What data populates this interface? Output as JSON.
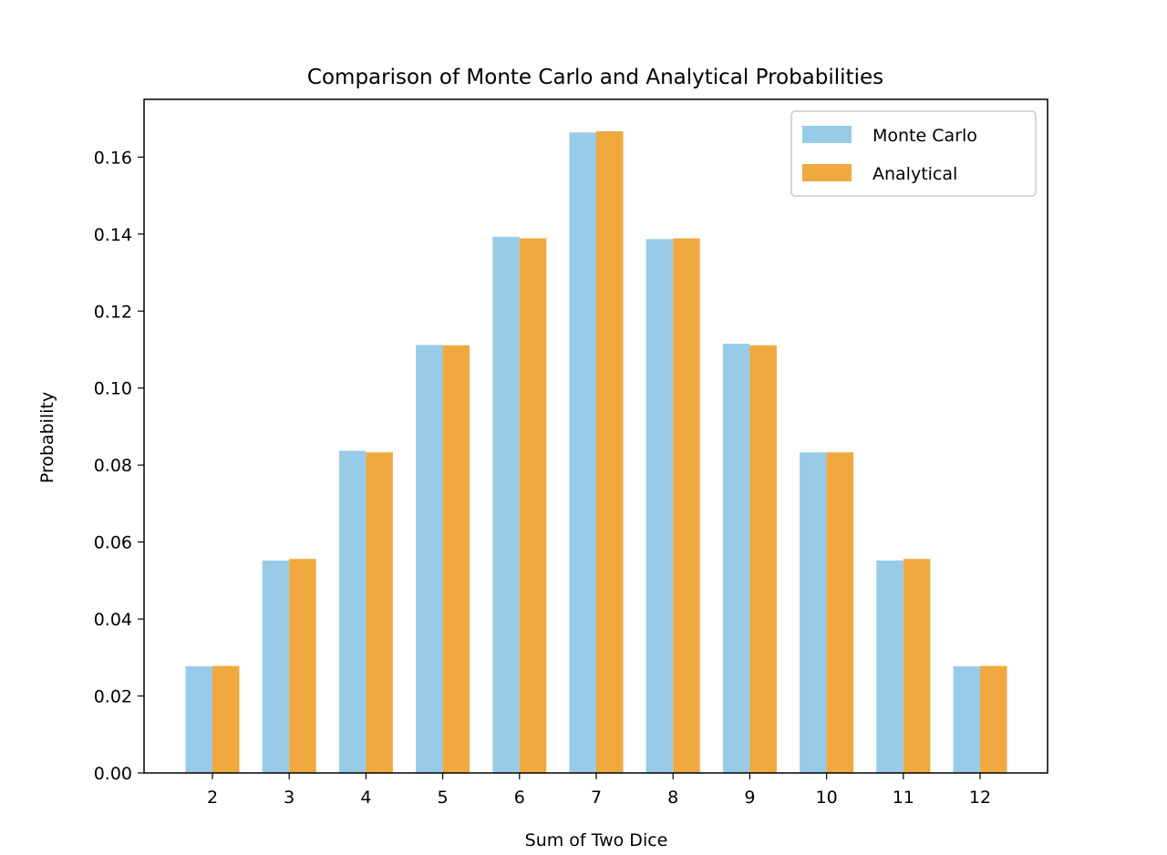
{
  "chart_data": {
    "type": "bar",
    "title": "Comparison of Monte Carlo and Analytical Probabilities",
    "xlabel": "Sum of Two Dice",
    "ylabel": "Probability",
    "categories": [
      "2",
      "3",
      "4",
      "5",
      "6",
      "7",
      "8",
      "9",
      "10",
      "11",
      "12"
    ],
    "series": [
      {
        "name": "Monte Carlo",
        "color": "#97CBE8",
        "values": [
          0.0277,
          0.0552,
          0.0837,
          0.1112,
          0.1393,
          0.1664,
          0.1387,
          0.1115,
          0.0833,
          0.0552,
          0.0277
        ]
      },
      {
        "name": "Analytical",
        "color": "#F0A93E",
        "values": [
          0.0278,
          0.0556,
          0.0833,
          0.1111,
          0.1389,
          0.1667,
          0.1389,
          0.1111,
          0.0833,
          0.0556,
          0.0278
        ]
      }
    ],
    "yticks": [
      0.0,
      0.02,
      0.04,
      0.06,
      0.08,
      0.1,
      0.12,
      0.14,
      0.16
    ],
    "ytick_labels": [
      "0.00",
      "0.02",
      "0.04",
      "0.06",
      "0.08",
      "0.10",
      "0.12",
      "0.14",
      "0.16"
    ],
    "ylim": [
      0,
      0.175
    ],
    "grid": false,
    "legend_position": "top-right"
  }
}
